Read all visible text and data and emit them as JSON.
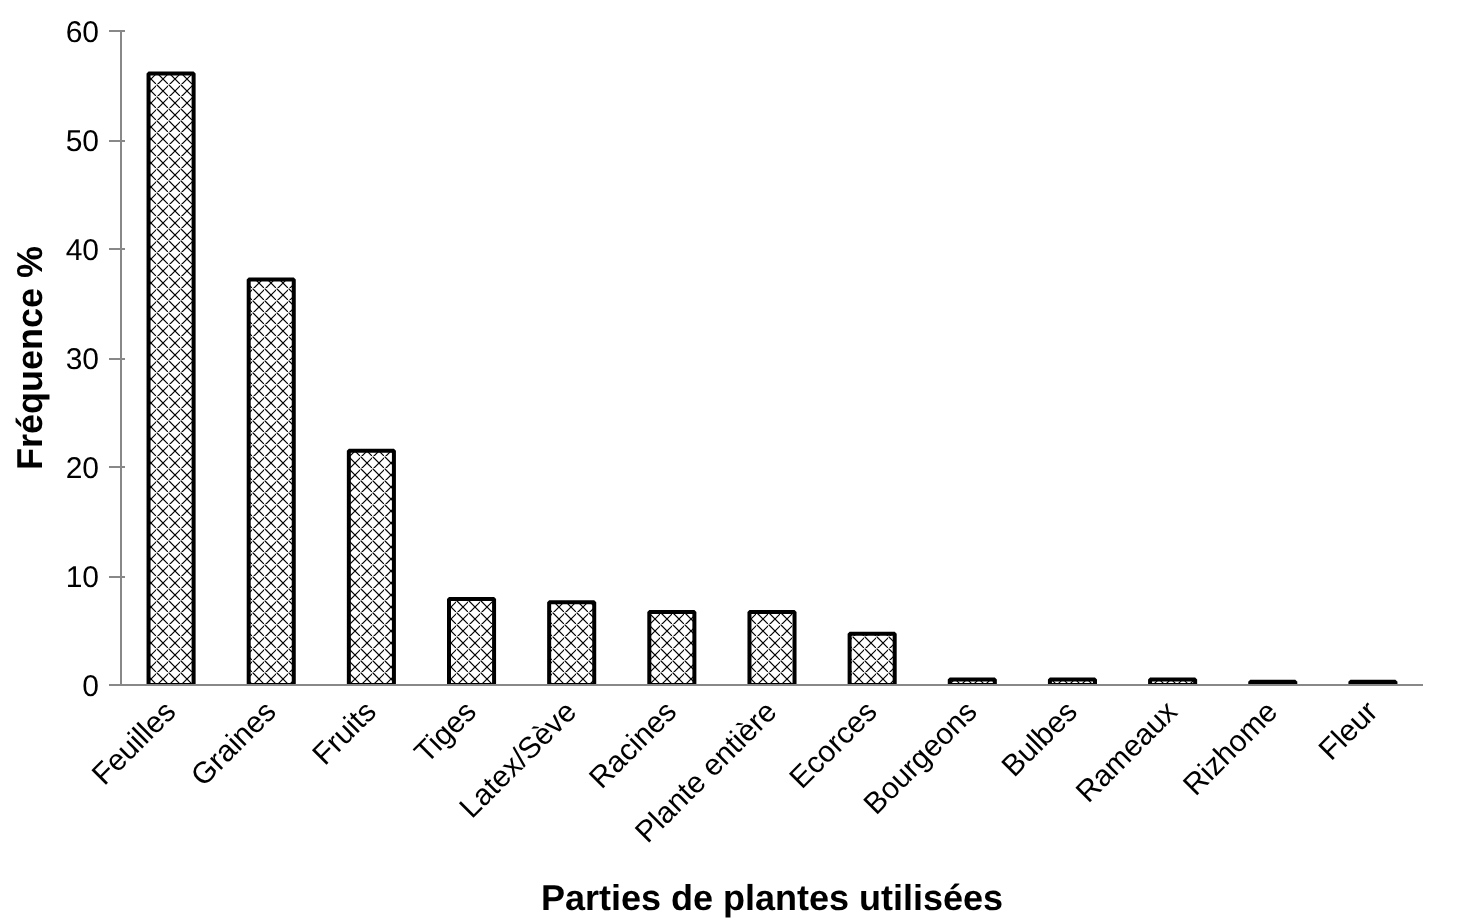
{
  "chart_data": {
    "type": "bar",
    "xlabel": "Parties de plantes utilisées",
    "ylabel": "Fréquence %",
    "categories": [
      "Feuilles",
      "Graines",
      "Fruits",
      "Tiges",
      "Latex/Sève",
      "Racines",
      "Plante entière",
      "Ecorces",
      "Bourgeons",
      "Bulbes",
      "Rameaux",
      "Rizhome",
      "Fleur"
    ],
    "values": [
      56.1,
      37.2,
      21.5,
      7.9,
      7.6,
      6.7,
      6.7,
      4.7,
      0.5,
      0.5,
      0.5,
      0.3,
      0.3
    ],
    "color": "#ffffff",
    "ylim": [
      0,
      60
    ],
    "yticks": [
      0,
      10,
      20,
      30,
      40,
      50,
      60
    ],
    "grid": false
  }
}
